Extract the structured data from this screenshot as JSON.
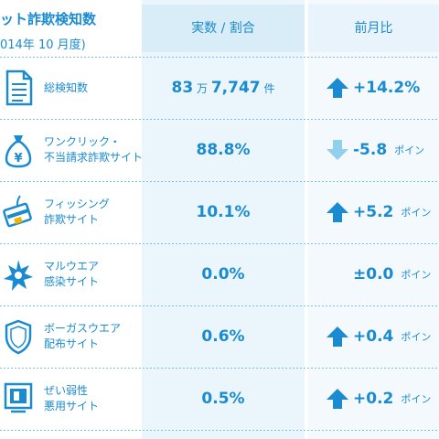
{
  "header": {
    "title": "ット詐欺検知数",
    "subtitle": "014年 10 月度)",
    "col_value": "実数 / 割合",
    "col_change": "前月比"
  },
  "colors": {
    "accent": "#1a8bd0",
    "up_arrow": "#1a8bd0",
    "down_arrow": "#8fd0ec"
  },
  "chart_data": {
    "type": "table",
    "columns": [
      "",
      "実数 / 割合",
      "前月比"
    ],
    "rows": [
      {
        "label_lines": [
          "総検知数"
        ],
        "value_main": "83",
        "value_unit1": "万",
        "value_rest": "7,747",
        "value_unit2": "件",
        "change": "+14.2%",
        "direction": "up",
        "change_unit": "",
        "icon": "document-icon"
      },
      {
        "label_lines": [
          "ワンクリック・",
          "不当請求詐欺サイト"
        ],
        "value_main": "88.8%",
        "change": "-5.8",
        "direction": "down",
        "change_unit": "ポイン",
        "icon": "money-bag-icon"
      },
      {
        "label_lines": [
          "フィッシング",
          "詐欺サイト"
        ],
        "value_main": "10.1%",
        "change": "+5.2",
        "direction": "up",
        "change_unit": "ポイン",
        "icon": "fishing-card-icon"
      },
      {
        "label_lines": [
          "マルウエア",
          "感染サイト"
        ],
        "value_main": "0.0%",
        "change": "±0.0",
        "direction": "none",
        "change_unit": "ポイン",
        "icon": "malware-burst-icon"
      },
      {
        "label_lines": [
          "ボーガスウエア",
          "配布サイト"
        ],
        "value_main": "0.6%",
        "change": "+0.4",
        "direction": "up",
        "change_unit": "ポイン",
        "icon": "shield-icon"
      },
      {
        "label_lines": [
          "ぜい弱性",
          "悪用サイト"
        ],
        "value_main": "0.5%",
        "change": "+0.2",
        "direction": "up",
        "change_unit": "ポイン",
        "icon": "vulnerable-monitor-icon"
      }
    ]
  }
}
